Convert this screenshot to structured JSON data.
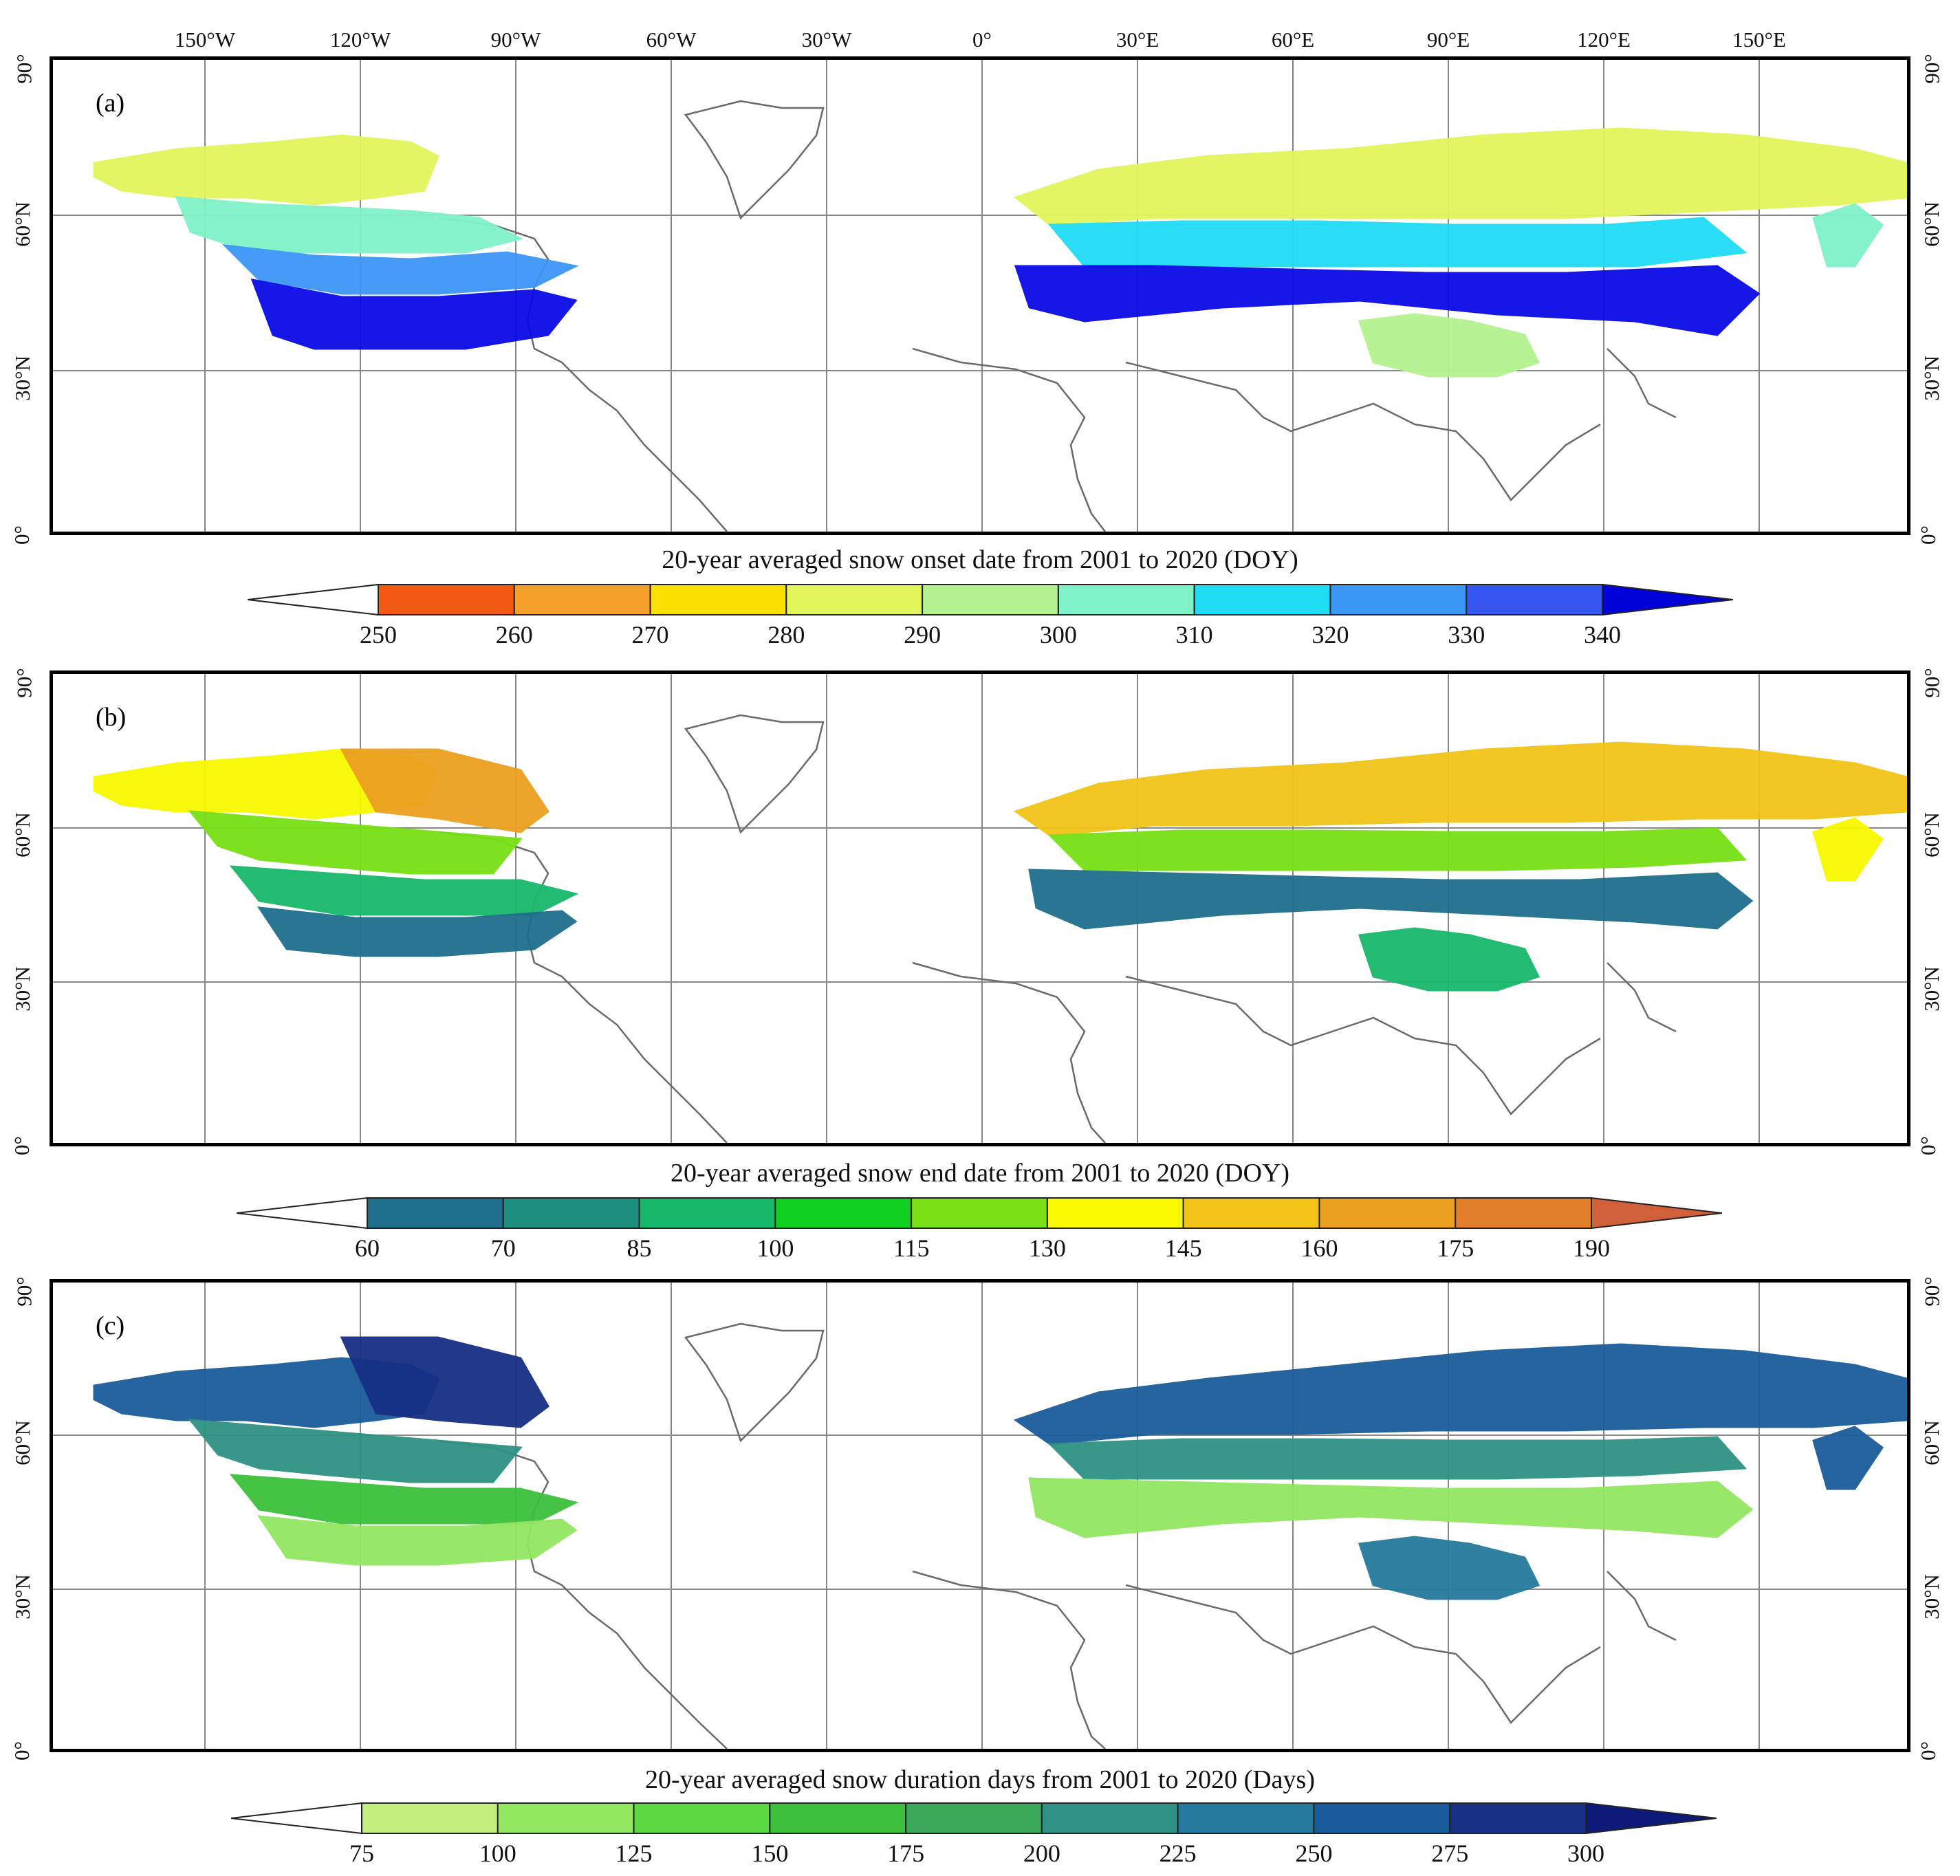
{
  "lon_labels": [
    "150°W",
    "120°W",
    "90°W",
    "60°W",
    "30°W",
    "0°",
    "30°E",
    "60°E",
    "90°E",
    "120°E",
    "150°E"
  ],
  "lat_labels": [
    "90°",
    "60°N",
    "30°N",
    "0°"
  ],
  "panels": [
    {
      "letter": "(a)",
      "colorbar": {
        "title": "20-year averaged snow onset date from 2001 to 2020 (DOY)",
        "ticks": [
          "250",
          "260",
          "270",
          "280",
          "290",
          "300",
          "310",
          "320",
          "330",
          "340"
        ],
        "colors": [
          "#f25a14",
          "#f5a02a",
          "#fbe000",
          "#e2f55a",
          "#b4f290",
          "#7ff2c8",
          "#1fdcf5",
          "#3c96f5",
          "#3656f0",
          "#0a0ae6"
        ],
        "under_color": "#ffffff",
        "over_color": "#0000d8"
      }
    },
    {
      "letter": "(b)",
      "colorbar": {
        "title": "20-year averaged snow end date from 2001 to 2020 (DOY)",
        "ticks": [
          "60",
          "70",
          "85",
          "100",
          "115",
          "130",
          "145",
          "160",
          "175",
          "190"
        ],
        "colors": [
          "#1f6e8c",
          "#1e9082",
          "#18b86a",
          "#10d020",
          "#78e014",
          "#f8f800",
          "#f2c418",
          "#eca020",
          "#e37e2a"
        ],
        "under_color": "#ffffff",
        "over_color": "#d0603a"
      }
    },
    {
      "letter": "(c)",
      "colorbar": {
        "title": "20-year averaged snow duration days from 2001 to 2020 (Days)",
        "ticks": [
          "75",
          "100",
          "125",
          "150",
          "175",
          "200",
          "225",
          "250",
          "275",
          "300"
        ],
        "colors": [
          "#c4f080",
          "#92e660",
          "#5cd842",
          "#3cc03c",
          "#3aa65a",
          "#2f9284",
          "#257a9e",
          "#1a5c9a",
          "#172f85"
        ],
        "under_color": "#ffffff",
        "over_color": "#0d1a78"
      }
    }
  ],
  "layers": {
    "a": [
      {
        "color": "#e2f55a"
      },
      {
        "color": "#7ff2c8"
      },
      {
        "color": "#1fdcf5"
      },
      {
        "color": "#3c96f5"
      },
      {
        "color": "#0a0ae6"
      },
      {
        "color": "#b4f290"
      }
    ],
    "b": [
      {
        "color": "#f2c418"
      },
      {
        "color": "#eca020"
      },
      {
        "color": "#78e014"
      },
      {
        "color": "#18b86a"
      },
      {
        "color": "#1f6e8c"
      },
      {
        "color": "#f8f800"
      }
    ],
    "c": [
      {
        "color": "#1a5c9a"
      },
      {
        "color": "#172f85"
      },
      {
        "color": "#2f9284"
      },
      {
        "color": "#3cc03c"
      },
      {
        "color": "#92e660"
      },
      {
        "color": "#257a9e"
      }
    ]
  }
}
